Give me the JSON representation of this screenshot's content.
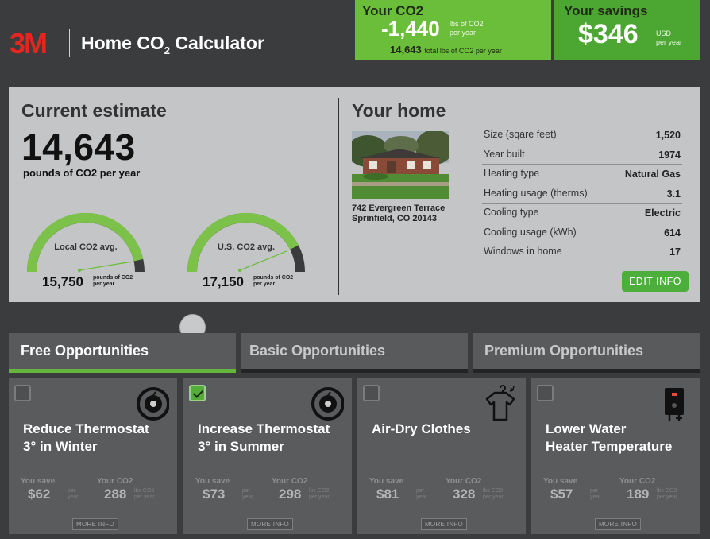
{
  "header": {
    "logo_text": "3M",
    "title_main": "Home CO",
    "title_sub": "2",
    "title_tail": " Calculator",
    "your_co2": {
      "label": "Your CO2",
      "value": "-1,440",
      "unit_line1": "lbs of CO2",
      "unit_line2": "per year",
      "total_value": "14,643",
      "total_label": "total lbs of CO2 per year"
    },
    "your_savings": {
      "label": "Your savings",
      "value": "$346",
      "unit_line1": "USD",
      "unit_line2": "per year"
    }
  },
  "estimate": {
    "title": "Current estimate",
    "value": "14,643",
    "unit": "pounds of CO2 per year",
    "gauges": [
      {
        "label": "Local CO2 avg.",
        "value": "15,750",
        "unit_line1": "pounds of CO2",
        "unit_line2": "per year",
        "fill_fraction": 0.93
      },
      {
        "label": "U.S. CO2 avg.",
        "value": "17,150",
        "unit_line1": "pounds of CO2",
        "unit_line2": "per year",
        "fill_fraction": 0.85
      }
    ]
  },
  "home": {
    "title": "Your home",
    "address_line1": "742 Evergreen Terrace",
    "address_line2": "Sprinfield, CO 20143",
    "details": [
      {
        "key": "Size (sqare feet)",
        "value": "1,520"
      },
      {
        "key": "Year built",
        "value": "1974"
      },
      {
        "key": "Heating type",
        "value": "Natural Gas"
      },
      {
        "key": "Heating usage (therms)",
        "value": "3.1"
      },
      {
        "key": "Cooling type",
        "value": "Electric"
      },
      {
        "key": "Cooling usage (kWh)",
        "value": "614"
      },
      {
        "key": "Windows in home",
        "value": "17"
      }
    ],
    "edit_label": "EDIT INFO"
  },
  "tabs": [
    {
      "label": "Free Opportunities",
      "active": true
    },
    {
      "label": "Basic Opportunities",
      "active": false
    },
    {
      "label": "Premium Opportunities",
      "active": false
    }
  ],
  "cards": [
    {
      "title_line1": "Reduce Thermostat",
      "title_line2": "3° in Winter",
      "checked": false,
      "icon": "thermostat-icon",
      "save_label": "You save",
      "save_value": "$62",
      "save_unit1": "per",
      "save_unit2": "year",
      "co2_label": "Your CO2",
      "co2_value": "288",
      "co2_unit1": "lbs CO2",
      "co2_unit2": "per year",
      "more_label": "MORE INFO"
    },
    {
      "title_line1": "Increase Thermostat",
      "title_line2": "3° in Summer",
      "checked": true,
      "icon": "thermostat-icon",
      "save_label": "You save",
      "save_value": "$73",
      "save_unit1": "per",
      "save_unit2": "year",
      "co2_label": "Your CO2",
      "co2_value": "298",
      "co2_unit1": "lbs CO2",
      "co2_unit2": "per year",
      "more_label": "MORE INFO"
    },
    {
      "title_line1": "Air-Dry Clothes",
      "title_line2": "",
      "checked": false,
      "icon": "shirt-hanger-icon",
      "save_label": "You save",
      "save_value": "$81",
      "save_unit1": "per",
      "save_unit2": "year",
      "co2_label": "Your CO2",
      "co2_value": "328",
      "co2_unit1": "lbs CO2",
      "co2_unit2": "per year",
      "more_label": "MORE INFO"
    },
    {
      "title_line1": "Lower Water",
      "title_line2": "Heater Temperature",
      "checked": false,
      "icon": "water-heater-icon",
      "save_label": "You save",
      "save_value": "$57",
      "save_unit1": "per",
      "save_unit2": "year",
      "co2_label": "Your CO2",
      "co2_value": "189",
      "co2_unit1": "lbs CO2",
      "co2_unit2": "per year",
      "more_label": "MORE INFO"
    }
  ],
  "colors": {
    "background": "#3b3c3e",
    "co2_green": "#6bbe3a",
    "savings_green": "#4ca732",
    "panel_gray": "#c4c5c6",
    "logo_red": "#e5261f"
  }
}
